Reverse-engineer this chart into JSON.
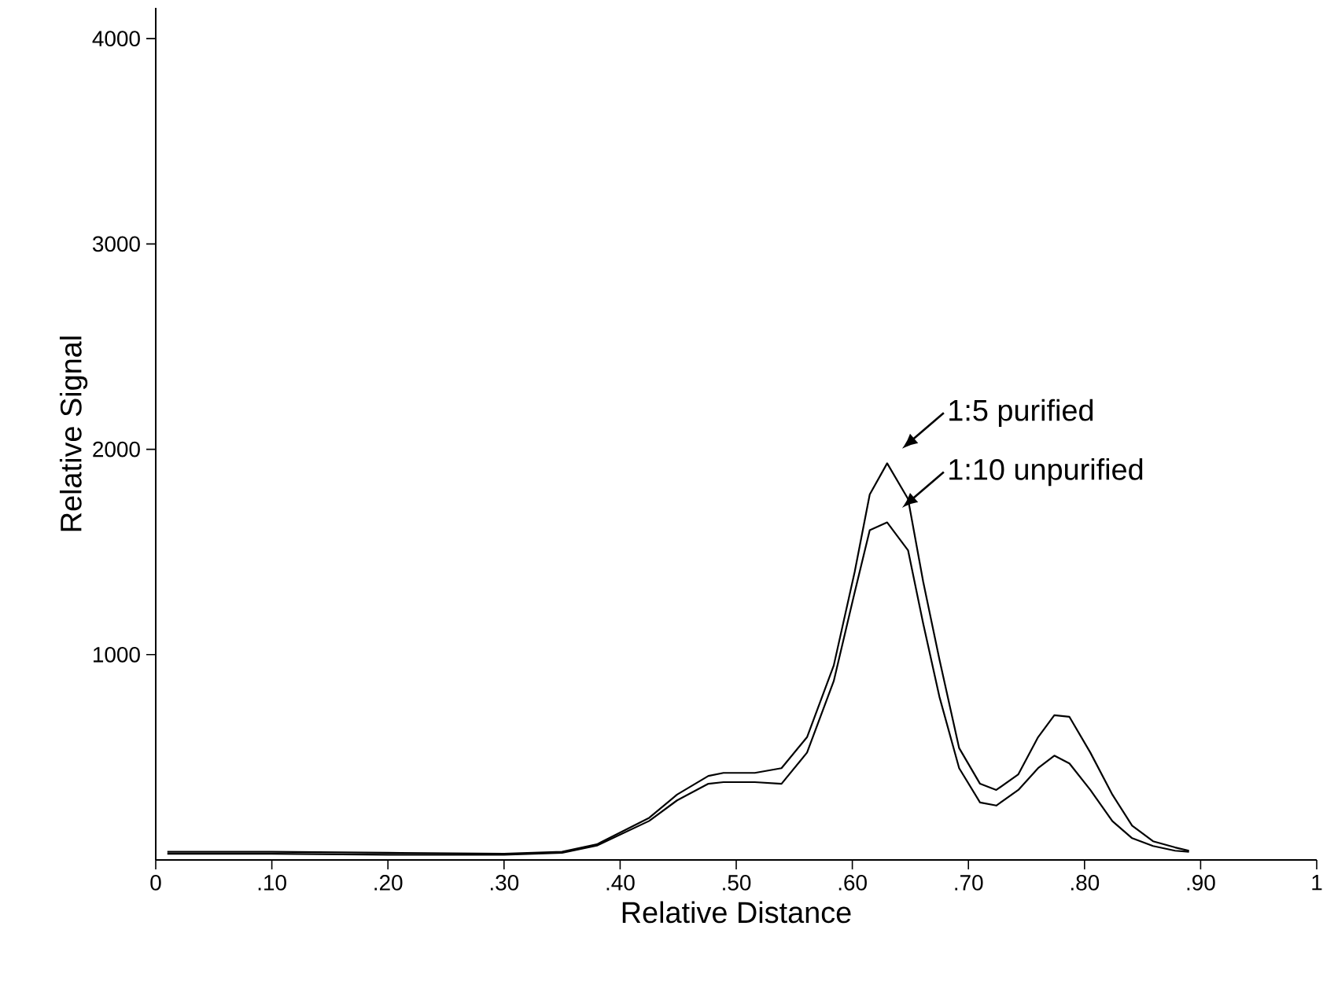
{
  "chart_data": {
    "type": "line",
    "xlabel": "Relative Distance",
    "ylabel": "Relative Signal",
    "xlim": [
      0,
      1
    ],
    "ylim": [
      0,
      4150
    ],
    "xticks": [
      0,
      {
        "value": 0.1,
        "label": ".10"
      },
      {
        "value": 0.2,
        "label": ".20"
      },
      {
        "value": 0.3,
        "label": ".30"
      },
      {
        "value": 0.4,
        "label": ".40"
      },
      {
        "value": 0.5,
        "label": ".50"
      },
      {
        "value": 0.6,
        "label": ".60"
      },
      {
        "value": 0.7,
        "label": ".70"
      },
      {
        "value": 0.8,
        "label": ".80"
      },
      {
        "value": 0.9,
        "label": ".90"
      },
      1
    ],
    "yticks": [
      1000,
      2000,
      3000,
      4000
    ],
    "grid": false,
    "marker": "none",
    "line_style": "solid",
    "series": [
      {
        "color": "#000000",
        "x": [
          0.01,
          0.1,
          0.2,
          0.3,
          0.35,
          0.38,
          0.425,
          0.449,
          0.476,
          0.489,
          0.516,
          0.539,
          0.561,
          0.584,
          0.602,
          0.615,
          0.63,
          0.648,
          0.661,
          0.675,
          0.692,
          0.71,
          0.724,
          0.743,
          0.76,
          0.774,
          0.787,
          0.805,
          0.824,
          0.841,
          0.859,
          0.878,
          0.89
        ],
        "values": [
          40,
          40,
          35,
          30,
          40,
          76,
          205,
          318,
          409,
          424,
          424,
          447,
          598,
          947,
          1402,
          1780,
          1932,
          1758,
          1356,
          977,
          545,
          371,
          341,
          417,
          598,
          705,
          697,
          523,
          318,
          167,
          91,
          61,
          45
        ]
      },
      {
        "color": "#000000",
        "x": [
          0.01,
          0.1,
          0.2,
          0.3,
          0.35,
          0.38,
          0.425,
          0.449,
          0.476,
          0.489,
          0.516,
          0.539,
          0.561,
          0.584,
          0.602,
          0.615,
          0.63,
          0.648,
          0.661,
          0.675,
          0.692,
          0.71,
          0.724,
          0.743,
          0.76,
          0.774,
          0.787,
          0.805,
          0.824,
          0.841,
          0.859,
          0.878,
          0.89
        ],
        "values": [
          30,
          30,
          25,
          25,
          35,
          70,
          190,
          290,
          371,
          379,
          379,
          371,
          523,
          871,
          1303,
          1606,
          1644,
          1508,
          1152,
          795,
          447,
          280,
          265,
          341,
          447,
          508,
          470,
          341,
          189,
          106,
          68,
          45,
          40
        ]
      }
    ],
    "annotations": [
      {
        "text": "1:5 purified",
        "x": 0.63,
        "y": 1932
      },
      {
        "text": "1:10 unpurified",
        "x": 0.63,
        "y": 1644
      }
    ]
  }
}
